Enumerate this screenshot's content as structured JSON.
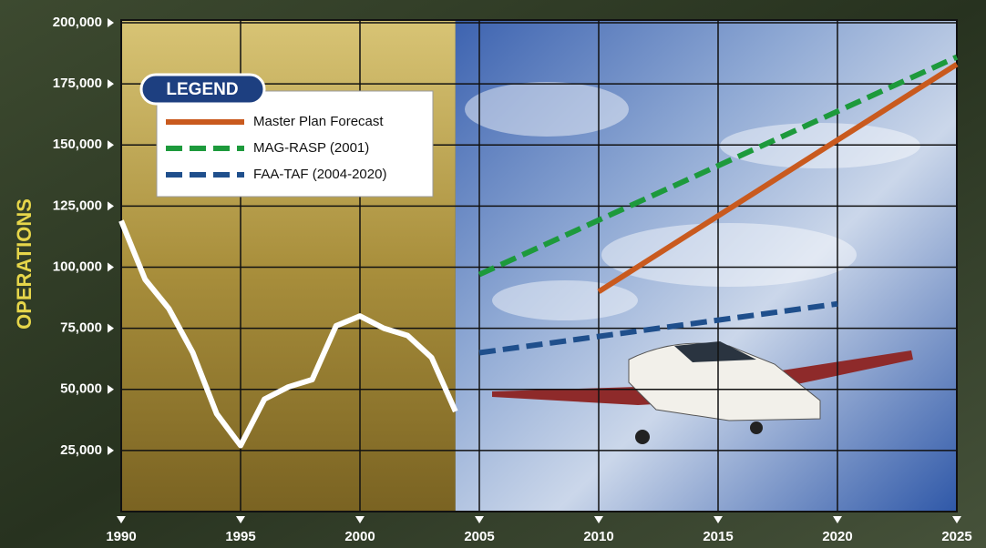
{
  "chart_data": {
    "type": "line",
    "y_label": "OPERATIONS",
    "legend_title": "LEGEND",
    "xlim": [
      1990,
      2025
    ],
    "xticks": [
      1990,
      1995,
      2000,
      2005,
      2010,
      2015,
      2020,
      2025
    ],
    "ylim": [
      0,
      200000
    ],
    "yticks": [
      {
        "value": 25000,
        "label": "25,000"
      },
      {
        "value": 50000,
        "label": "50,000"
      },
      {
        "value": 75000,
        "label": "75,000"
      },
      {
        "value": 100000,
        "label": "100,000"
      },
      {
        "value": 125000,
        "label": "125,000"
      },
      {
        "value": 150000,
        "label": "150,000"
      },
      {
        "value": 175000,
        "label": "175,000"
      },
      {
        "value": 200000,
        "label": "200,000"
      }
    ],
    "grid": true,
    "series": [
      {
        "color": "#ffffff",
        "style": "solid",
        "x": [
          1990,
          1991,
          1992,
          1993,
          1994,
          1995,
          1996,
          1997,
          1998,
          1999,
          2000,
          2001,
          2002,
          2003,
          2004
        ],
        "values": [
          119000,
          95000,
          83000,
          65000,
          40000,
          27000,
          46000,
          51000,
          54000,
          76000,
          80000,
          75000,
          72000,
          63000,
          41000
        ]
      },
      {
        "name": "Master Plan Forecast",
        "color": "#c95a1e",
        "style": "solid",
        "x": [
          2010,
          2025
        ],
        "values": [
          90000,
          183000
        ]
      },
      {
        "name": "MAG-RASP (2001)",
        "color": "#1d9a3c",
        "style": "dashed",
        "x": [
          2005,
          2025
        ],
        "values": [
          97000,
          186000
        ]
      },
      {
        "name": "FAA-TAF (2004-2020)",
        "color": "#1f4f8c",
        "style": "dashed",
        "x": [
          2005,
          2020
        ],
        "values": [
          65000,
          85000
        ]
      }
    ]
  }
}
